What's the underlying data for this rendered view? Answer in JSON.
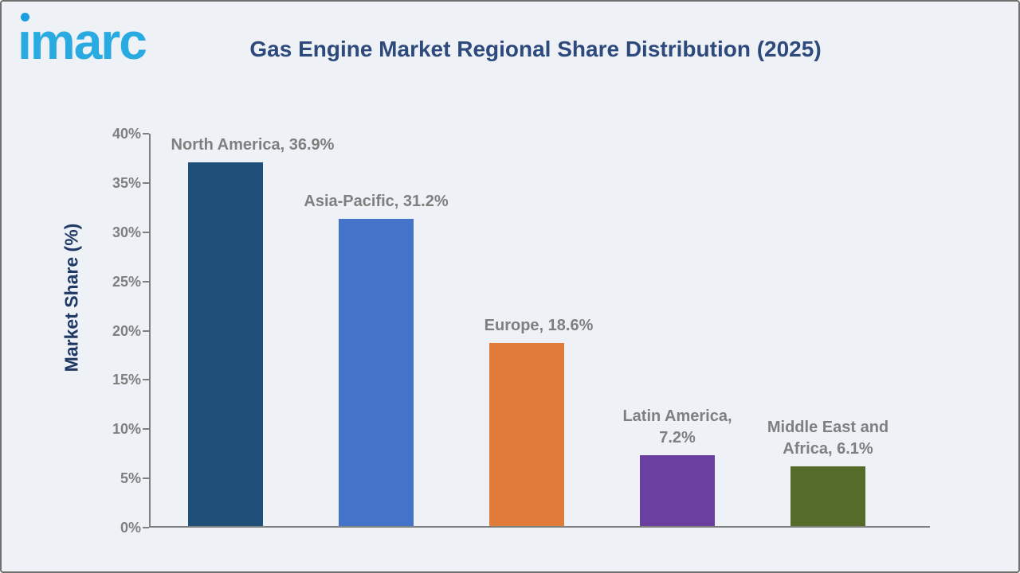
{
  "theme": {
    "background": "#eef1f6",
    "frame_border": "#6f6f6f",
    "title_color": "#2e4a7d",
    "label_gray": "#7f7f7f",
    "axis_gray": "#808080",
    "ylabel_navy": "#203864",
    "logo_blue": "#29abe2",
    "logo_dot_blue": "#1b9de0"
  },
  "logo": {
    "text": "imarc"
  },
  "header": {
    "title": "Gas Engine Market Regional Share Distribution (2025)"
  },
  "chart_data": {
    "type": "bar",
    "title": "Gas Engine Market Regional Share Distribution (2025)",
    "xlabel": "",
    "ylabel": "Market Share (%)",
    "ylim": [
      0,
      40
    ],
    "ytick_step": 5,
    "yticks": [
      "0%",
      "5%",
      "10%",
      "15%",
      "20%",
      "25%",
      "30%",
      "35%",
      "40%"
    ],
    "grid": false,
    "legend": "none",
    "categories": [
      "North America",
      "Asia-Pacific",
      "Europe",
      "Latin America",
      "Middle East and Africa"
    ],
    "values": [
      36.9,
      31.2,
      18.6,
      7.2,
      6.1
    ],
    "bars": [
      {
        "region": "North America",
        "value": 36.9,
        "color": "#1f4e79",
        "label_lines": [
          "North America, 36.9%"
        ]
      },
      {
        "region": "Asia-Pacific",
        "value": 31.2,
        "color": "#4473c9",
        "label_lines": [
          "Asia-Pacific, 31.2%"
        ]
      },
      {
        "region": "Europe",
        "value": 18.6,
        "color": "#e07b3a",
        "label_lines": [
          "Europe, 18.6%"
        ]
      },
      {
        "region": "Latin America",
        "value": 7.2,
        "color": "#6a3fa0",
        "label_lines": [
          "Latin America,",
          "7.2%"
        ]
      },
      {
        "region": "Middle East and Africa",
        "value": 6.1,
        "color": "#556b2a",
        "label_lines": [
          "Middle East and",
          "Africa, 6.1%"
        ]
      }
    ]
  }
}
